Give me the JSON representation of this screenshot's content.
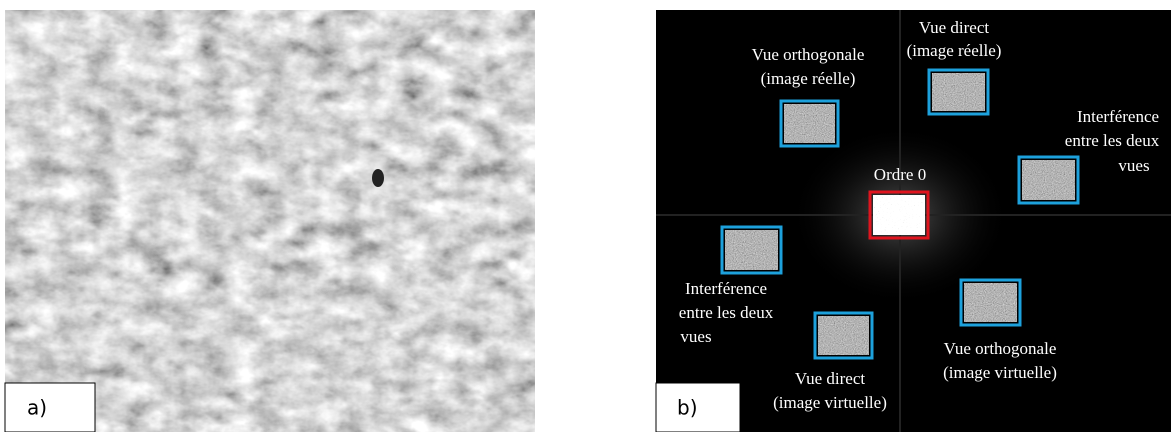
{
  "panels": [
    {
      "label": "a)"
    },
    {
      "label": "b)",
      "annotations": [
        {
          "lines": [
            "Vue orthogonale",
            "(image réelle)"
          ]
        },
        {
          "lines": [
            "Vue direct",
            "(image réelle)"
          ]
        },
        {
          "lines": [
            "Interférence",
            "entre les deux",
            "vues"
          ]
        },
        {
          "lines": [
            "Ordre 0"
          ]
        },
        {
          "lines": [
            "Interférence",
            "entre les deux",
            "vues"
          ]
        },
        {
          "lines": [
            "Vue direct",
            "(image virtuelle)"
          ]
        },
        {
          "lines": [
            "Vue orthogonale",
            "(image virtuelle)"
          ]
        }
      ]
    }
  ]
}
